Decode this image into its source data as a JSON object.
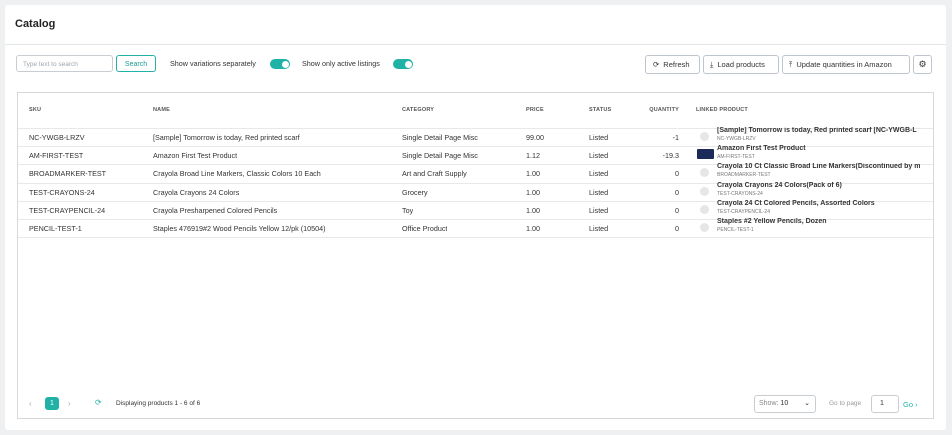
{
  "header": {
    "title": "Catalog"
  },
  "toolbar": {
    "search_placeholder": "Type text to search",
    "search_button": "Search",
    "toggle_variations": "Show variations separately",
    "toggle_active": "Show only active listings",
    "refresh": "Refresh",
    "load_products": "Load products",
    "update_quantities": "Update quantities in Amazon"
  },
  "table": {
    "columns": [
      "SKU",
      "NAME",
      "CATEGORY",
      "PRICE",
      "STATUS",
      "QUANTITY",
      "LINKED PRODUCT"
    ],
    "rows": [
      [
        "NC-YWGB-LRZV",
        "[Sample] Tomorrow is today, Red printed scarf",
        "Single Detail Page Misc",
        "99.00",
        "Listed",
        "-1",
        "[Sample] Tomorrow is today, Red printed scarf [NC-YWGB-L",
        "NC-YWGB-LRZV"
      ],
      [
        "AM-FIRST-TEST",
        "Amazon First Test Product",
        "Single Detail Page Misc",
        "1.12",
        "Listed",
        "-19.3",
        "Amazon First Test Product",
        "AM-FIRST-TEST"
      ],
      [
        "BROADMARKER-TEST",
        "Crayola Broad Line Markers, Classic Colors 10 Each",
        "Art and Craft Supply",
        "1.00",
        "Listed",
        "0",
        "Crayola 10 Ct Classic Broad Line Markers(Discontinued by m",
        "BROADMARKER-TEST"
      ],
      [
        "TEST-CRAYONS-24",
        "Crayola Crayons 24 Colors",
        "Grocery",
        "1.00",
        "Listed",
        "0",
        "Crayola Crayons 24 Colors(Pack of 6)",
        "TEST-CRAYONS-24"
      ],
      [
        "TEST-CRAYPENCIL-24",
        "Crayola Presharpened Colored Pencils",
        "Toy",
        "1.00",
        "Listed",
        "0",
        "Crayola 24 Ct Colored Pencils, Assorted Colors",
        "TEST-CRAYPENCIL-24"
      ],
      [
        "PENCIL-TEST-1",
        "Staples 476919#2 Wood Pencils Yellow 12/pk (10504)",
        "Office Product",
        "1.00",
        "Listed",
        "0",
        "Staples #2 Yellow Pencils, Dozen",
        "PENCIL-TEST-1"
      ]
    ]
  },
  "footer": {
    "page": "1",
    "displaying": "Displaying products 1 - 6 of 6",
    "show_label": "Show:",
    "show_value": "10",
    "go_to_page_label": "Go to page",
    "go_to_page_value": "1",
    "go": "Go"
  }
}
